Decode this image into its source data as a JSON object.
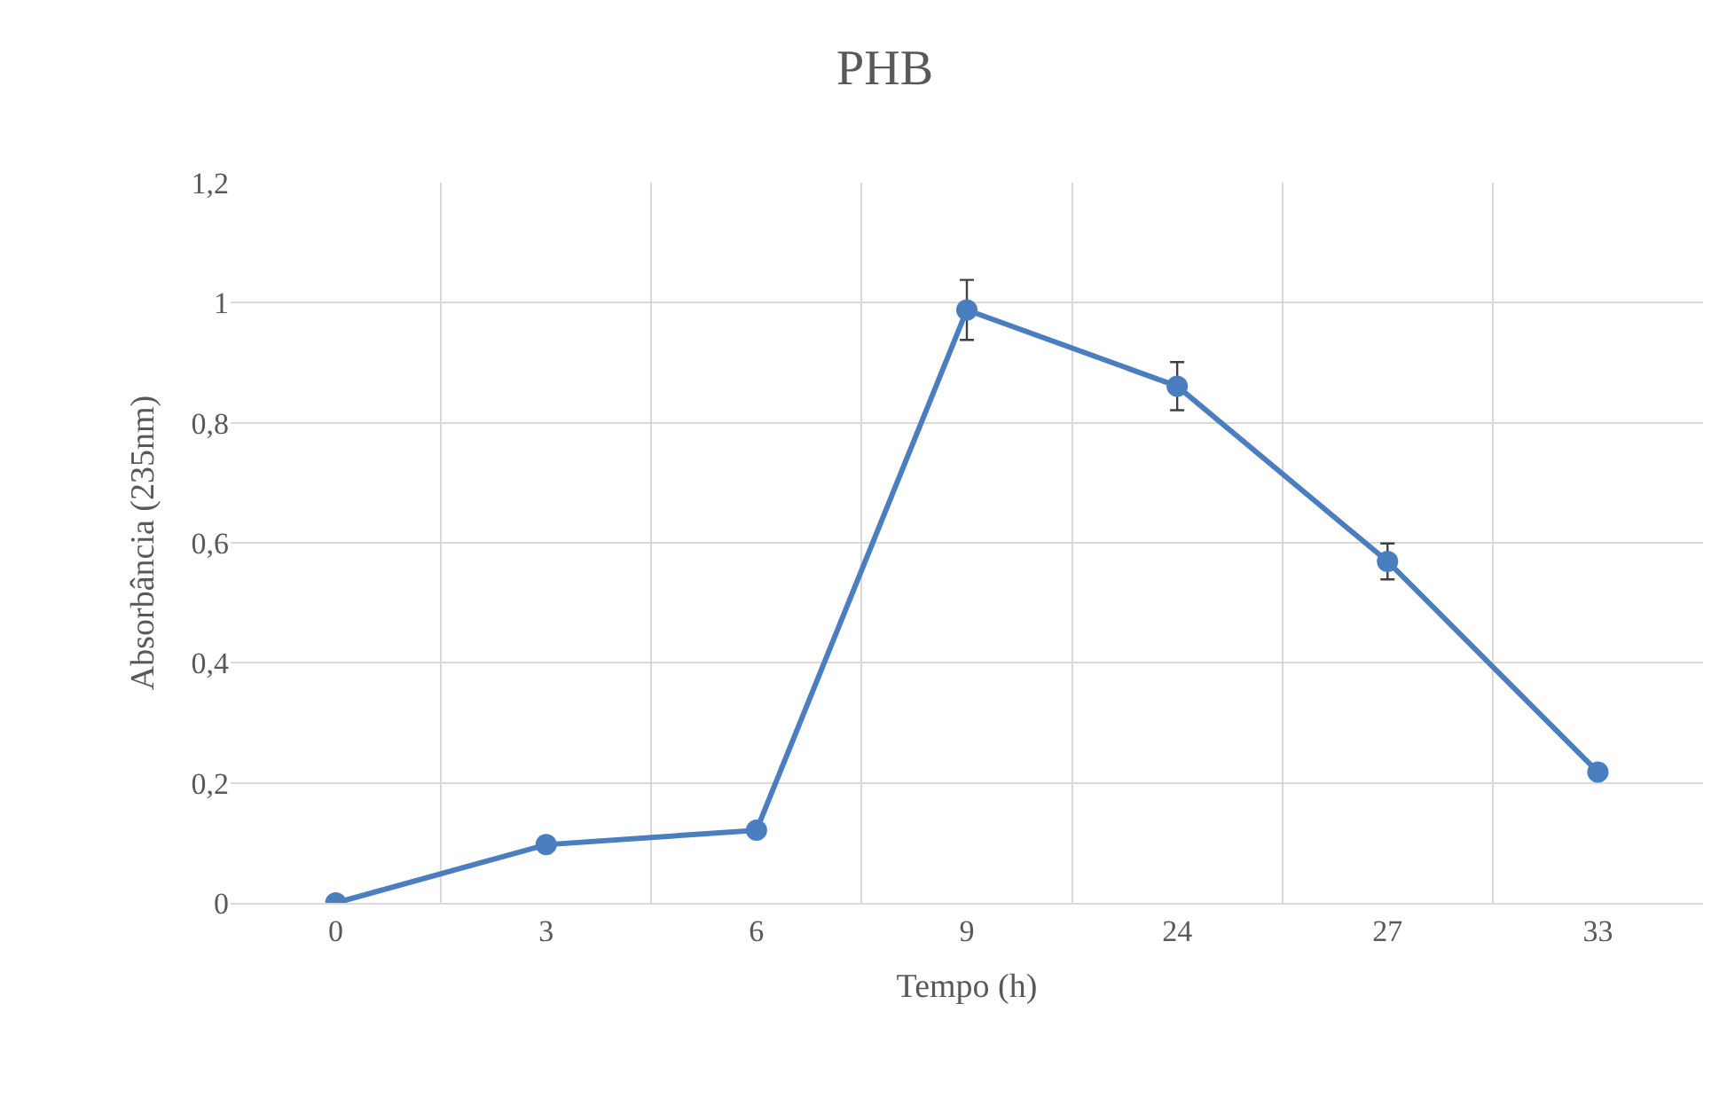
{
  "chart_data": {
    "type": "line",
    "title": "PHB",
    "xlabel": "Tempo (h)",
    "ylabel": "Absorbância (235nm)",
    "categories": [
      "0",
      "3",
      "6",
      "9",
      "24",
      "27",
      "33"
    ],
    "series": [
      {
        "color": "#4a7ebf",
        "values": [
          0,
          0.097,
          0.121,
          0.988,
          0.861,
          0.569,
          0.218
        ],
        "errors": [
          null,
          null,
          null,
          0.05,
          0.04,
          0.03,
          null
        ]
      }
    ],
    "ylim": [
      0,
      1.2
    ],
    "yticks": [
      {
        "value": 0,
        "label": "0"
      },
      {
        "value": 0.2,
        "label": "0,2"
      },
      {
        "value": 0.4,
        "label": "0,4"
      },
      {
        "value": 0.6,
        "label": "0,6"
      },
      {
        "value": 0.8,
        "label": "0,8"
      },
      {
        "value": 1,
        "label": "1"
      },
      {
        "value": 1.2,
        "label": "1,2"
      }
    ],
    "grid": true,
    "marker": "circle",
    "line_style": "solid"
  }
}
